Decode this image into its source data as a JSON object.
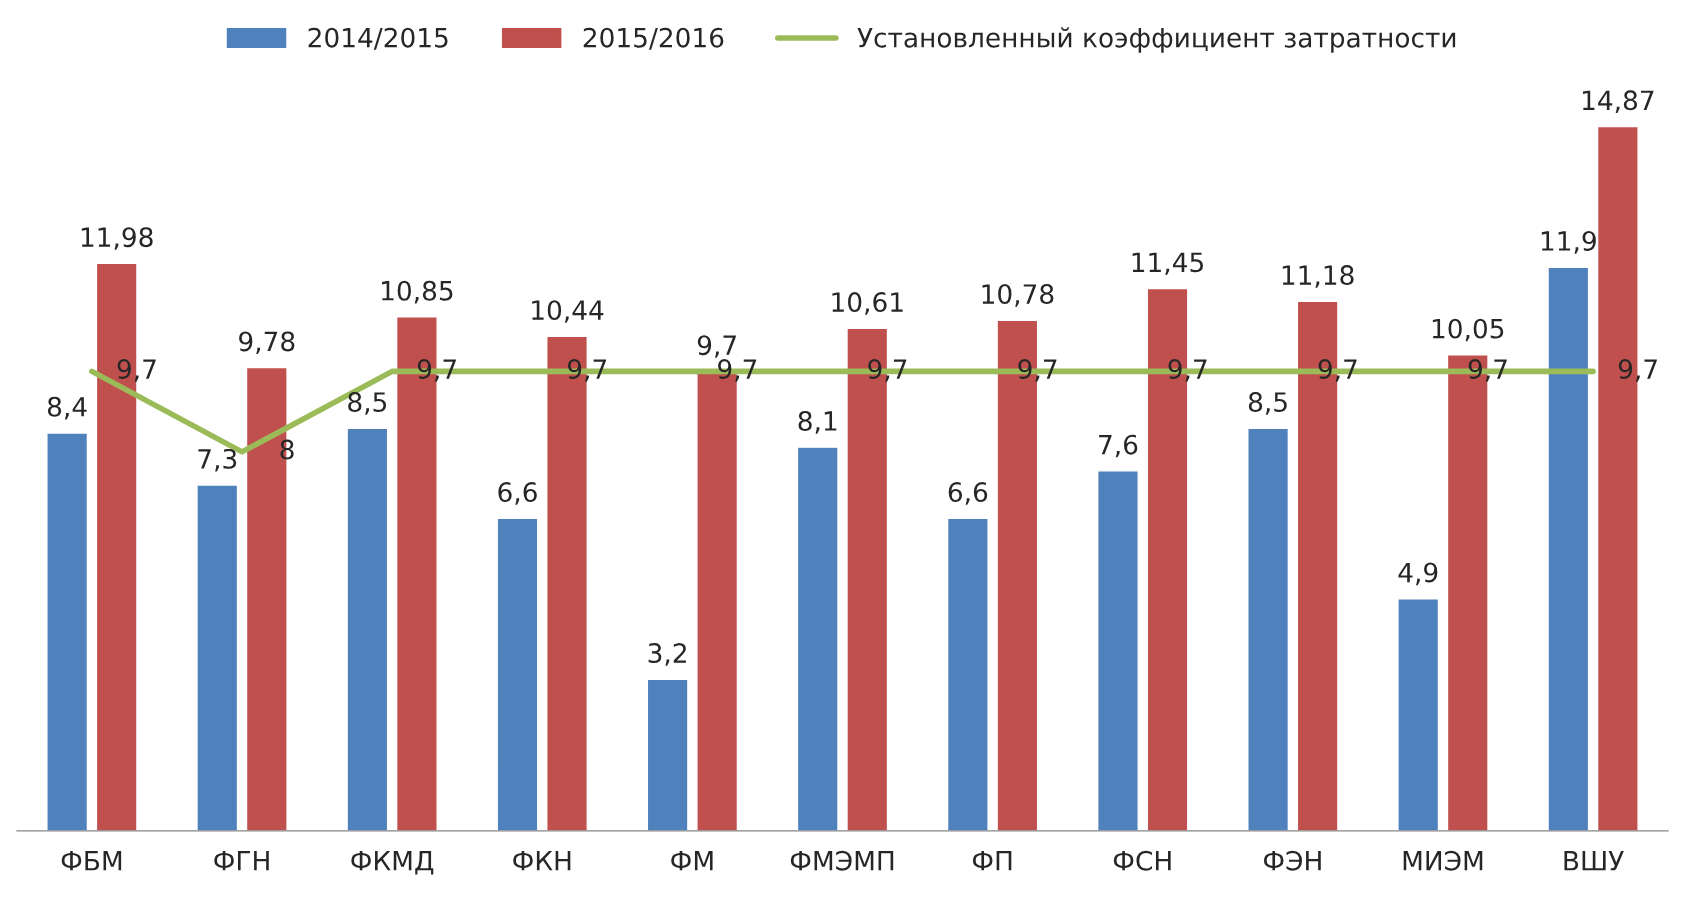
{
  "chart_data": {
    "type": "bar",
    "categories": [
      "ФБМ",
      "ФГН",
      "ФКМД",
      "ФКН",
      "ФМ",
      "ФМЭМП",
      "ФП",
      "ФСН",
      "ФЭН",
      "МИЭМ",
      "ВШУ"
    ],
    "series": [
      {
        "name": "2014/2015",
        "color": "#4f81bd",
        "values": [
          8.4,
          7.3,
          8.5,
          6.6,
          3.2,
          8.1,
          6.6,
          7.6,
          8.5,
          4.9,
          11.9
        ],
        "value_labels": [
          "8,4",
          "7,3",
          "8,5",
          "6,6",
          "3,2",
          "8,1",
          "6,6",
          "7,6",
          "8,5",
          "4,9",
          "11,9"
        ]
      },
      {
        "name": "2015/2016",
        "color": "#c0504d",
        "values": [
          11.98,
          9.78,
          10.85,
          10.44,
          9.7,
          10.61,
          10.78,
          11.45,
          11.18,
          10.05,
          14.87
        ],
        "value_labels": [
          "11,98",
          "9,78",
          "10,85",
          "10,44",
          "9,7",
          "10,61",
          "10,78",
          "11,45",
          "11,18",
          "10,05",
          "14,87"
        ]
      },
      {
        "name": "Установленный коэффициент затратности",
        "type": "line",
        "color": "#9bbb59",
        "marker": "none",
        "values": [
          9.7,
          8,
          9.7,
          9.7,
          9.7,
          9.7,
          9.7,
          9.7,
          9.7,
          9.7,
          9.7
        ],
        "value_labels": [
          "9,7",
          "8",
          "9,7",
          "9,7",
          "9,7",
          "9,7",
          "9,7",
          "9,7",
          "9,7",
          "9,7",
          "9,7"
        ]
      }
    ],
    "legend": "top",
    "grid": false,
    "tick_labels": "x"
  }
}
